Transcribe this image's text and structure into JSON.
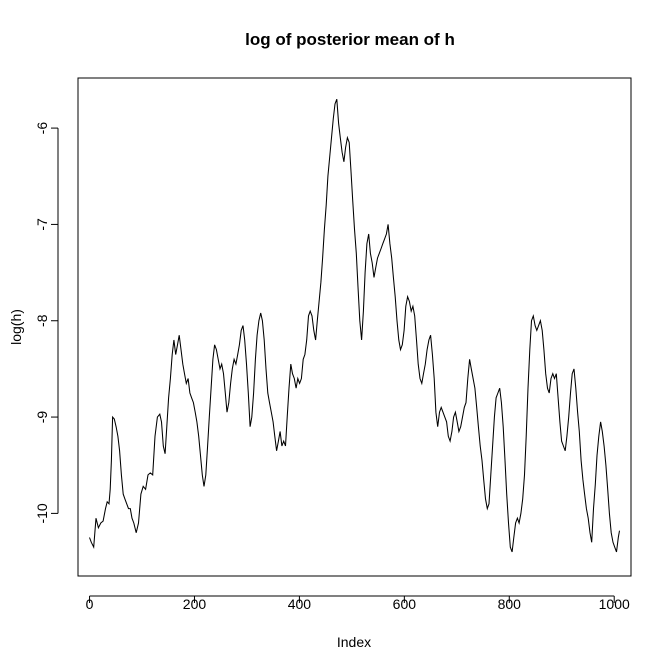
{
  "chart_data": {
    "type": "line",
    "title": "log of posterior mean of h",
    "xlabel": "Index",
    "ylabel": "log(h)",
    "xlim": [
      -22,
      1032
    ],
    "ylim": [
      -10.65,
      -5.48
    ],
    "xticks": [
      0,
      200,
      400,
      600,
      800,
      1000
    ],
    "yticks": [
      -10,
      -9,
      -8,
      -7,
      -6
    ],
    "grid": false,
    "series": [
      {
        "values_xy": [
          [
            1,
            -10.25
          ],
          [
            4,
            -10.3
          ],
          [
            8,
            -10.35
          ],
          [
            12,
            -10.05
          ],
          [
            16,
            -10.15
          ],
          [
            20,
            -10.1
          ],
          [
            24,
            -10.08
          ],
          [
            28,
            -9.95
          ],
          [
            31,
            -9.88
          ],
          [
            34,
            -9.9
          ],
          [
            36,
            -9.75
          ],
          [
            38,
            -9.45
          ],
          [
            40,
            -9.0
          ],
          [
            43,
            -9.02
          ],
          [
            46,
            -9.1
          ],
          [
            49,
            -9.2
          ],
          [
            52,
            -9.35
          ],
          [
            55,
            -9.6
          ],
          [
            58,
            -9.8
          ],
          [
            61,
            -9.85
          ],
          [
            64,
            -9.9
          ],
          [
            67,
            -9.95
          ],
          [
            70,
            -9.95
          ],
          [
            73,
            -10.05
          ],
          [
            76,
            -10.1
          ],
          [
            80,
            -10.2
          ],
          [
            84,
            -10.1
          ],
          [
            88,
            -9.8
          ],
          [
            92,
            -9.72
          ],
          [
            96,
            -9.75
          ],
          [
            100,
            -9.6
          ],
          [
            104,
            -9.58
          ],
          [
            108,
            -9.6
          ],
          [
            112,
            -9.2
          ],
          [
            116,
            -9.0
          ],
          [
            120,
            -8.97
          ],
          [
            123,
            -9.05
          ],
          [
            126,
            -9.3
          ],
          [
            129,
            -9.38
          ],
          [
            132,
            -9.1
          ],
          [
            135,
            -8.8
          ],
          [
            138,
            -8.6
          ],
          [
            141,
            -8.35
          ],
          [
            144,
            -8.2
          ],
          [
            147,
            -8.35
          ],
          [
            150,
            -8.25
          ],
          [
            153,
            -8.15
          ],
          [
            156,
            -8.3
          ],
          [
            159,
            -8.45
          ],
          [
            162,
            -8.55
          ],
          [
            165,
            -8.65
          ],
          [
            168,
            -8.6
          ],
          [
            171,
            -8.75
          ],
          [
            174,
            -8.8
          ],
          [
            177,
            -8.85
          ],
          [
            180,
            -8.95
          ],
          [
            183,
            -9.05
          ],
          [
            186,
            -9.2
          ],
          [
            189,
            -9.4
          ],
          [
            192,
            -9.6
          ],
          [
            195,
            -9.72
          ],
          [
            198,
            -9.6
          ],
          [
            201,
            -9.3
          ],
          [
            204,
            -9.0
          ],
          [
            207,
            -8.7
          ],
          [
            210,
            -8.4
          ],
          [
            213,
            -8.25
          ],
          [
            216,
            -8.3
          ],
          [
            219,
            -8.4
          ],
          [
            222,
            -8.5
          ],
          [
            225,
            -8.45
          ],
          [
            228,
            -8.55
          ],
          [
            231,
            -8.75
          ],
          [
            234,
            -8.95
          ],
          [
            237,
            -8.85
          ],
          [
            240,
            -8.65
          ],
          [
            243,
            -8.5
          ],
          [
            246,
            -8.4
          ],
          [
            249,
            -8.45
          ],
          [
            252,
            -8.35
          ],
          [
            255,
            -8.25
          ],
          [
            258,
            -8.1
          ],
          [
            261,
            -8.05
          ],
          [
            264,
            -8.2
          ],
          [
            267,
            -8.45
          ],
          [
            270,
            -8.75
          ],
          [
            273,
            -9.1
          ],
          [
            276,
            -9.0
          ],
          [
            279,
            -8.75
          ],
          [
            282,
            -8.4
          ],
          [
            285,
            -8.15
          ],
          [
            288,
            -8.0
          ],
          [
            291,
            -7.92
          ],
          [
            294,
            -8.0
          ],
          [
            297,
            -8.2
          ],
          [
            300,
            -8.5
          ],
          [
            303,
            -8.75
          ],
          [
            306,
            -8.85
          ],
          [
            309,
            -8.95
          ],
          [
            312,
            -9.05
          ],
          [
            315,
            -9.2
          ],
          [
            318,
            -9.35
          ],
          [
            321,
            -9.25
          ],
          [
            324,
            -9.15
          ],
          [
            327,
            -9.3
          ],
          [
            330,
            -9.25
          ],
          [
            333,
            -9.3
          ],
          [
            336,
            -9.0
          ],
          [
            339,
            -8.7
          ],
          [
            342,
            -8.45
          ],
          [
            345,
            -8.55
          ],
          [
            348,
            -8.6
          ],
          [
            351,
            -8.7
          ],
          [
            354,
            -8.6
          ],
          [
            357,
            -8.65
          ],
          [
            360,
            -8.6
          ],
          [
            363,
            -8.4
          ],
          [
            366,
            -8.35
          ],
          [
            369,
            -8.2
          ],
          [
            372,
            -7.95
          ],
          [
            375,
            -7.9
          ],
          [
            378,
            -7.95
          ],
          [
            381,
            -8.1
          ],
          [
            384,
            -8.2
          ],
          [
            387,
            -8.0
          ],
          [
            390,
            -7.8
          ],
          [
            393,
            -7.6
          ],
          [
            396,
            -7.35
          ],
          [
            399,
            -7.05
          ],
          [
            402,
            -6.8
          ],
          [
            405,
            -6.5
          ],
          [
            408,
            -6.3
          ],
          [
            411,
            -6.1
          ],
          [
            414,
            -5.9
          ],
          [
            417,
            -5.75
          ],
          [
            420,
            -5.7
          ],
          [
            423,
            -5.95
          ],
          [
            426,
            -6.1
          ],
          [
            429,
            -6.25
          ],
          [
            432,
            -6.35
          ],
          [
            435,
            -6.2
          ],
          [
            438,
            -6.1
          ],
          [
            441,
            -6.15
          ],
          [
            444,
            -6.45
          ],
          [
            447,
            -6.75
          ],
          [
            450,
            -7.05
          ],
          [
            453,
            -7.3
          ],
          [
            456,
            -7.65
          ],
          [
            459,
            -8.0
          ],
          [
            462,
            -8.2
          ],
          [
            465,
            -7.9
          ],
          [
            468,
            -7.5
          ],
          [
            471,
            -7.2
          ],
          [
            474,
            -7.1
          ],
          [
            477,
            -7.3
          ],
          [
            480,
            -7.4
          ],
          [
            483,
            -7.55
          ],
          [
            486,
            -7.45
          ],
          [
            489,
            -7.35
          ],
          [
            492,
            -7.3
          ],
          [
            495,
            -7.25
          ],
          [
            498,
            -7.2
          ],
          [
            501,
            -7.15
          ],
          [
            504,
            -7.1
          ],
          [
            507,
            -7.0
          ],
          [
            510,
            -7.2
          ],
          [
            513,
            -7.35
          ],
          [
            516,
            -7.55
          ],
          [
            519,
            -7.75
          ],
          [
            522,
            -8.0
          ],
          [
            525,
            -8.2
          ],
          [
            528,
            -8.3
          ],
          [
            531,
            -8.25
          ],
          [
            534,
            -8.1
          ],
          [
            537,
            -7.85
          ],
          [
            540,
            -7.75
          ],
          [
            543,
            -7.8
          ],
          [
            546,
            -7.9
          ],
          [
            549,
            -7.85
          ],
          [
            552,
            -7.95
          ],
          [
            555,
            -8.2
          ],
          [
            558,
            -8.45
          ],
          [
            561,
            -8.6
          ],
          [
            564,
            -8.65
          ],
          [
            567,
            -8.55
          ],
          [
            570,
            -8.45
          ],
          [
            573,
            -8.3
          ],
          [
            576,
            -8.2
          ],
          [
            579,
            -8.15
          ],
          [
            582,
            -8.35
          ],
          [
            585,
            -8.6
          ],
          [
            588,
            -8.95
          ],
          [
            591,
            -9.1
          ],
          [
            594,
            -8.95
          ],
          [
            597,
            -8.9
          ],
          [
            600,
            -8.95
          ],
          [
            603,
            -9.0
          ],
          [
            606,
            -9.05
          ],
          [
            609,
            -9.2
          ],
          [
            612,
            -9.25
          ],
          [
            615,
            -9.15
          ],
          [
            618,
            -9.0
          ],
          [
            621,
            -8.95
          ],
          [
            624,
            -9.05
          ],
          [
            627,
            -9.15
          ],
          [
            630,
            -9.1
          ],
          [
            633,
            -9.0
          ],
          [
            636,
            -8.9
          ],
          [
            639,
            -8.85
          ],
          [
            642,
            -8.6
          ],
          [
            645,
            -8.4
          ],
          [
            648,
            -8.5
          ],
          [
            651,
            -8.6
          ],
          [
            654,
            -8.7
          ],
          [
            657,
            -8.9
          ],
          [
            660,
            -9.1
          ],
          [
            663,
            -9.3
          ],
          [
            666,
            -9.45
          ],
          [
            669,
            -9.65
          ],
          [
            672,
            -9.85
          ],
          [
            675,
            -9.95
          ],
          [
            678,
            -9.9
          ],
          [
            681,
            -9.6
          ],
          [
            684,
            -9.3
          ],
          [
            687,
            -9.0
          ],
          [
            690,
            -8.8
          ],
          [
            693,
            -8.75
          ],
          [
            696,
            -8.7
          ],
          [
            699,
            -8.85
          ],
          [
            702,
            -9.1
          ],
          [
            705,
            -9.45
          ],
          [
            708,
            -9.8
          ],
          [
            711,
            -10.1
          ],
          [
            714,
            -10.35
          ],
          [
            717,
            -10.4
          ],
          [
            720,
            -10.25
          ],
          [
            723,
            -10.1
          ],
          [
            726,
            -10.05
          ],
          [
            729,
            -10.1
          ],
          [
            732,
            -10.0
          ],
          [
            735,
            -9.85
          ],
          [
            738,
            -9.6
          ],
          [
            741,
            -9.2
          ],
          [
            744,
            -8.7
          ],
          [
            747,
            -8.3
          ],
          [
            750,
            -8.0
          ],
          [
            753,
            -7.95
          ],
          [
            756,
            -8.05
          ],
          [
            759,
            -8.1
          ],
          [
            762,
            -8.05
          ],
          [
            765,
            -8.0
          ],
          [
            768,
            -8.1
          ],
          [
            771,
            -8.3
          ],
          [
            774,
            -8.55
          ],
          [
            777,
            -8.7
          ],
          [
            780,
            -8.75
          ],
          [
            783,
            -8.6
          ],
          [
            786,
            -8.55
          ],
          [
            789,
            -8.6
          ],
          [
            792,
            -8.55
          ],
          [
            795,
            -8.8
          ],
          [
            798,
            -9.05
          ],
          [
            801,
            -9.25
          ],
          [
            804,
            -9.3
          ],
          [
            807,
            -9.35
          ],
          [
            810,
            -9.2
          ],
          [
            813,
            -9.0
          ],
          [
            816,
            -8.75
          ],
          [
            819,
            -8.55
          ],
          [
            822,
            -8.5
          ],
          [
            825,
            -8.7
          ],
          [
            828,
            -8.95
          ],
          [
            831,
            -9.15
          ],
          [
            834,
            -9.45
          ],
          [
            837,
            -9.65
          ],
          [
            840,
            -9.8
          ],
          [
            843,
            -9.95
          ],
          [
            846,
            -10.05
          ],
          [
            849,
            -10.2
          ],
          [
            852,
            -10.3
          ],
          [
            855,
            -9.95
          ],
          [
            858,
            -9.7
          ],
          [
            861,
            -9.4
          ],
          [
            864,
            -9.2
          ],
          [
            867,
            -9.05
          ],
          [
            870,
            -9.15
          ],
          [
            873,
            -9.3
          ],
          [
            876,
            -9.5
          ],
          [
            879,
            -9.75
          ],
          [
            882,
            -10.0
          ],
          [
            885,
            -10.2
          ],
          [
            888,
            -10.3
          ],
          [
            891,
            -10.35
          ],
          [
            894,
            -10.4
          ],
          [
            897,
            -10.25
          ],
          [
            899,
            -10.18
          ]
        ]
      }
    ],
    "x_scale_from": [
      1,
      899
    ],
    "x_scale_to": [
      0,
      1010
    ]
  }
}
